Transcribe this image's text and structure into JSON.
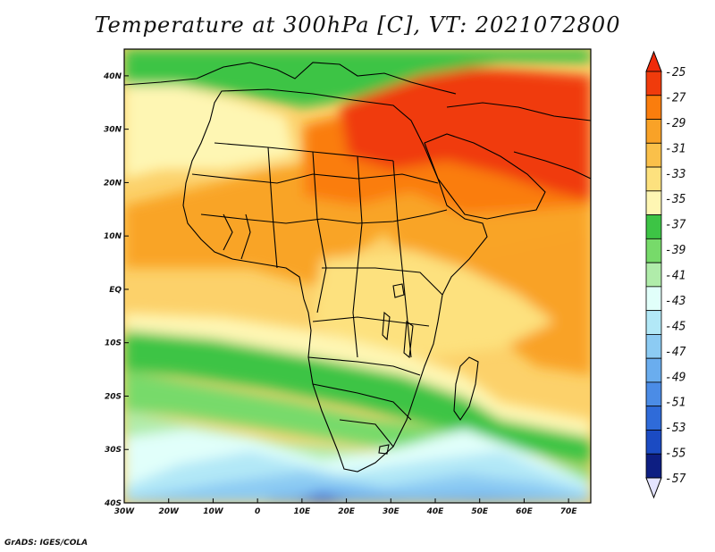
{
  "title": "Temperature at 300hPa [C], VT: 2021072800",
  "footer": "GrADS: IGES/COLA",
  "map": {
    "lon_range": [
      -30,
      75
    ],
    "lat_range": [
      -40,
      45
    ],
    "lon_ticks": [
      {
        "v": -30,
        "label": "30W"
      },
      {
        "v": -20,
        "label": "20W"
      },
      {
        "v": -10,
        "label": "10W"
      },
      {
        "v": 0,
        "label": "0"
      },
      {
        "v": 10,
        "label": "10E"
      },
      {
        "v": 20,
        "label": "20E"
      },
      {
        "v": 30,
        "label": "30E"
      },
      {
        "v": 40,
        "label": "40E"
      },
      {
        "v": 50,
        "label": "50E"
      },
      {
        "v": 60,
        "label": "60E"
      },
      {
        "v": 70,
        "label": "70E"
      }
    ],
    "lat_ticks": [
      {
        "v": 40,
        "label": "40N"
      },
      {
        "v": 30,
        "label": "30N"
      },
      {
        "v": 20,
        "label": "20N"
      },
      {
        "v": 10,
        "label": "10N"
      },
      {
        "v": 0,
        "label": "EQ"
      },
      {
        "v": -10,
        "label": "10S"
      },
      {
        "v": -20,
        "label": "20S"
      },
      {
        "v": -30,
        "label": "30S"
      },
      {
        "v": -40,
        "label": "40S"
      }
    ]
  },
  "colorbar": {
    "labels": [
      "-25",
      "-27",
      "-29",
      "-31",
      "-33",
      "-35",
      "-37",
      "-39",
      "-41",
      "-43",
      "-45",
      "-47",
      "-49",
      "-51",
      "-53",
      "-55",
      "-57"
    ],
    "colors": [
      "#f03b0c",
      "#fa7d0d",
      "#f9a227",
      "#fac04a",
      "#fde17e",
      "#fef6b3",
      "#3dc445",
      "#77da6a",
      "#b0ecaa",
      "#e1fffa",
      "#b2e8f7",
      "#8ccbf3",
      "#6aadee",
      "#4b8ce6",
      "#2f6bd9",
      "#1b4bc3",
      "#0d1e82"
    ],
    "top_color": "#f02a0a",
    "bottom_color": "#e4e4ff"
  }
}
